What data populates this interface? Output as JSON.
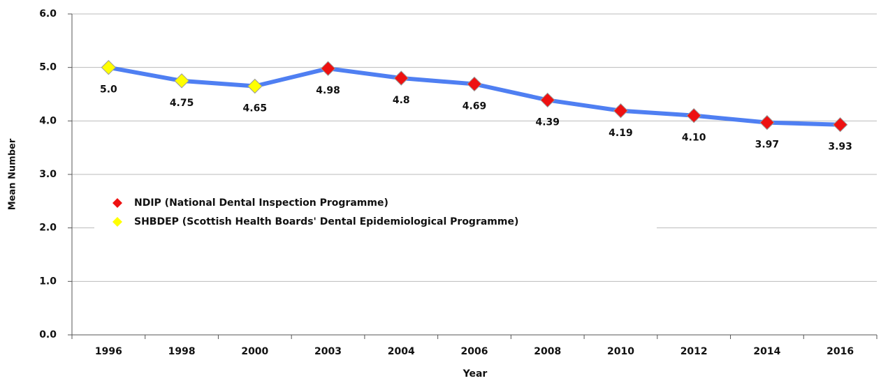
{
  "chart_data": {
    "type": "line",
    "x_label": "Year",
    "y_label": "Mean Number",
    "categories": [
      "1996",
      "1998",
      "2000",
      "2003",
      "2004",
      "2006",
      "2008",
      "2010",
      "2012",
      "2014",
      "2016"
    ],
    "line_color": "#4f7ff2",
    "series": [
      {
        "name": "NDIP (National Dental Inspection Programme)",
        "color": "#ee1111",
        "values": [
          null,
          null,
          null,
          4.98,
          4.8,
          4.69,
          4.39,
          4.19,
          4.1,
          3.97,
          3.93
        ],
        "value_labels": [
          null,
          null,
          null,
          "4.98",
          "4.8",
          "4.69",
          "4.39",
          "4.19",
          "4.10",
          "3.97",
          "3.93"
        ]
      },
      {
        "name": "SHBDEP (Scottish Health Boards' Dental Epidemiological Programme)",
        "color": "#ffff00",
        "values": [
          5,
          4.75,
          4.65,
          null,
          null,
          null,
          null,
          null,
          null,
          null,
          null
        ],
        "value_labels": [
          "5.0",
          "4.75",
          "4.65",
          null,
          null,
          null,
          null,
          null,
          null,
          null,
          null
        ]
      }
    ],
    "ylim": [
      0,
      6
    ],
    "yticks": [
      {
        "value": 0,
        "label": "0.0"
      },
      {
        "value": 1,
        "label": "1.0"
      },
      {
        "value": 2,
        "label": "2.0"
      },
      {
        "value": 3,
        "label": "3.0"
      },
      {
        "value": 4,
        "label": "4.0"
      },
      {
        "value": 5,
        "label": "5.0"
      },
      {
        "value": 6,
        "label": "6.0"
      }
    ],
    "grid": true
  }
}
